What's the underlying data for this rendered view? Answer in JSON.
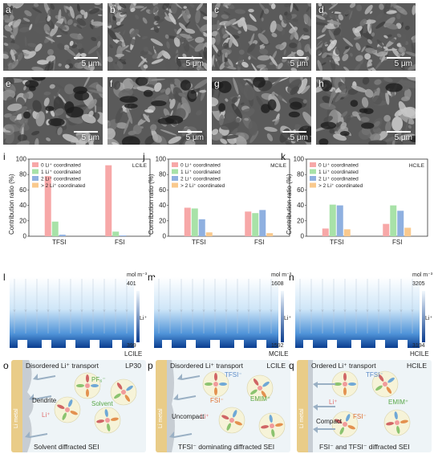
{
  "sem_panels": [
    {
      "letter": "a",
      "scale": "5 μm"
    },
    {
      "letter": "b",
      "scale": "5 μm"
    },
    {
      "letter": "c",
      "scale": "5 μm"
    },
    {
      "letter": "d",
      "scale": "5 μm"
    },
    {
      "letter": "e",
      "scale": "5 μm"
    },
    {
      "letter": "f",
      "scale": "5 μm"
    },
    {
      "letter": "g",
      "scale": "5 μm"
    },
    {
      "letter": "h",
      "scale": "5 μm"
    }
  ],
  "chart_data": [
    {
      "panel": "i",
      "type": "bar",
      "title": "LCILE",
      "ylabel": "Contribution ratio (%)",
      "ylim": [
        0,
        100
      ],
      "yticks": [
        "0",
        "20",
        "40",
        "60",
        "80",
        "100"
      ],
      "categories": [
        "TFSI",
        "FSI"
      ],
      "series": [
        {
          "name": "0 Li⁺ coordinated",
          "color": "#f7a8a8",
          "values": [
            78,
            92
          ]
        },
        {
          "name": "1 Li⁺ coordinated",
          "color": "#a8e2a8",
          "values": [
            19,
            6
          ]
        },
        {
          "name": "2 Li⁺ coordinated",
          "color": "#8fb0e0",
          "values": [
            2,
            1
          ]
        },
        {
          "name": "> 2 Li⁺ coordinated",
          "color": "#f9c98e",
          "values": [
            0,
            0
          ]
        }
      ]
    },
    {
      "panel": "j",
      "type": "bar",
      "title": "MCILE",
      "ylabel": "Contribution ratio (%)",
      "ylim": [
        0,
        100
      ],
      "yticks": [
        "0",
        "20",
        "40",
        "60",
        "80",
        "100"
      ],
      "categories": [
        "TFSI",
        "FSI"
      ],
      "series": [
        {
          "name": "0 Li⁺ coordinated",
          "color": "#f7a8a8",
          "values": [
            37,
            32
          ]
        },
        {
          "name": "1 Li⁺ coordinated",
          "color": "#a8e2a8",
          "values": [
            36,
            30
          ]
        },
        {
          "name": "2 Li⁺ coordinated",
          "color": "#8fb0e0",
          "values": [
            22,
            34
          ]
        },
        {
          "name": "> 2 Li⁺ coordinated",
          "color": "#f9c98e",
          "values": [
            5,
            4
          ]
        }
      ]
    },
    {
      "panel": "k",
      "type": "bar",
      "title": "HCILE",
      "ylabel": "Contribution ratio (%)",
      "ylim": [
        0,
        100
      ],
      "yticks": [
        "0",
        "20",
        "40",
        "60",
        "80",
        "100"
      ],
      "categories": [
        "TFSI",
        "FSI"
      ],
      "series": [
        {
          "name": "0 Li⁺ coordinated",
          "color": "#f7a8a8",
          "values": [
            10,
            16
          ]
        },
        {
          "name": "1 Li⁺ coordinated",
          "color": "#a8e2a8",
          "values": [
            41,
            40
          ]
        },
        {
          "name": "2 Li⁺ coordinated",
          "color": "#8fb0e0",
          "values": [
            40,
            33
          ]
        },
        {
          "name": "> 2 Li⁺ coordinated",
          "color": "#f9c98e",
          "values": [
            9,
            11
          ]
        }
      ]
    }
  ],
  "sim_panels": [
    {
      "letter": "l",
      "name": "LCILE",
      "unit": "mol m⁻³",
      "max": "401",
      "min": "399",
      "species": "Li⁺"
    },
    {
      "letter": "m",
      "name": "MCILE",
      "unit": "mol m⁻³",
      "max": "1608",
      "min": "1592",
      "species": "Li⁺"
    },
    {
      "letter": "n",
      "name": "HCILE",
      "unit": "mol m⁻³",
      "max": "3205",
      "min": "3194",
      "species": "Li⁺"
    }
  ],
  "schemes": [
    {
      "letter": "o",
      "transport": "Disordered Li⁺ transport",
      "electrolyte": "LP30",
      "metal": "Li metal",
      "labels": [
        "PF₆⁻",
        "Solvent",
        "Li⁺",
        "Dendrite"
      ],
      "caption": "Solvent diffracted SEI"
    },
    {
      "letter": "p",
      "transport": "Disordered Li⁺ transport",
      "electrolyte": "LCILE",
      "metal": "Li metal",
      "labels": [
        "TFSI⁻",
        "FSI⁻",
        "EMIM⁺",
        "Li⁺",
        "Uncompact"
      ],
      "caption": "TFSI⁻ dominating diffracted SEI"
    },
    {
      "letter": "q",
      "transport": "Ordered Li⁺ transport",
      "electrolyte": "HCILE",
      "metal": "Li metal",
      "labels": [
        "TFSI⁻",
        "EMIM⁺",
        "FSI⁻",
        "Li⁺",
        "Compact"
      ],
      "caption": "FSI⁻ and TFSI⁻ diffracted SEI"
    }
  ],
  "colors": {
    "sem_dark": "#3a3a3a",
    "sem_light": "#b5b5b5",
    "sim_dark": "#0a3d8f",
    "sim_light": "#dff0fb",
    "metal": "#e9cc88"
  }
}
